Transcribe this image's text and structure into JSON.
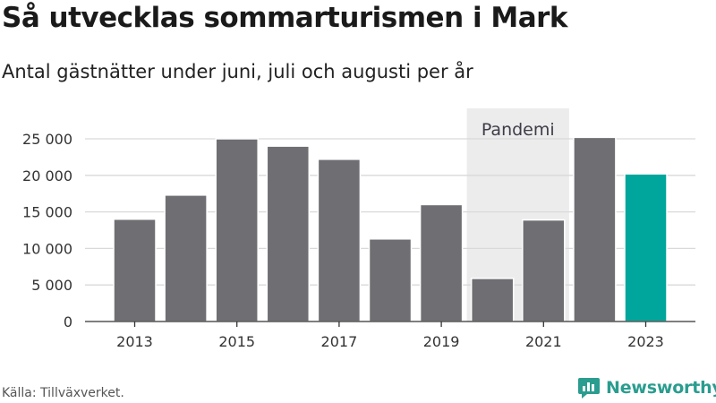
{
  "header": {
    "title": "Så utvecklas sommarturismen i Mark",
    "subtitle": "Antal gästnätter under juni, juli och augusti per år"
  },
  "footer": {
    "source": "Källa: Tillväxverket.",
    "brand": "Newsworthy"
  },
  "colors": {
    "bar": "#6f6e73",
    "highlight": "#00a69c",
    "band": "#ececec",
    "grid": "#d9d9d9",
    "brand": "#2a9d8f"
  },
  "chart_data": {
    "type": "bar",
    "title": "Så utvecklas sommarturismen i Mark",
    "subtitle": "Antal gästnätter under juni, juli och augusti per år",
    "categories": [
      "2013",
      "2014",
      "2015",
      "2016",
      "2017",
      "2018",
      "2019",
      "2020",
      "2021",
      "2022",
      "2023"
    ],
    "values": [
      14000,
      17300,
      25000,
      24000,
      22200,
      11300,
      16000,
      5900,
      13900,
      25200,
      20200
    ],
    "highlight_index": 10,
    "x_tick_labels": [
      "2013",
      "2015",
      "2017",
      "2019",
      "2021",
      "2023"
    ],
    "y_ticks": [
      0,
      5000,
      10000,
      15000,
      20000,
      25000
    ],
    "y_tick_labels": [
      "0",
      "5 000",
      "10 000",
      "15 000",
      "20 000",
      "25 000"
    ],
    "ylim": [
      0,
      25000
    ],
    "grid": true,
    "annotation": {
      "label": "Pandemi",
      "from": "2020",
      "to": "2021"
    }
  }
}
